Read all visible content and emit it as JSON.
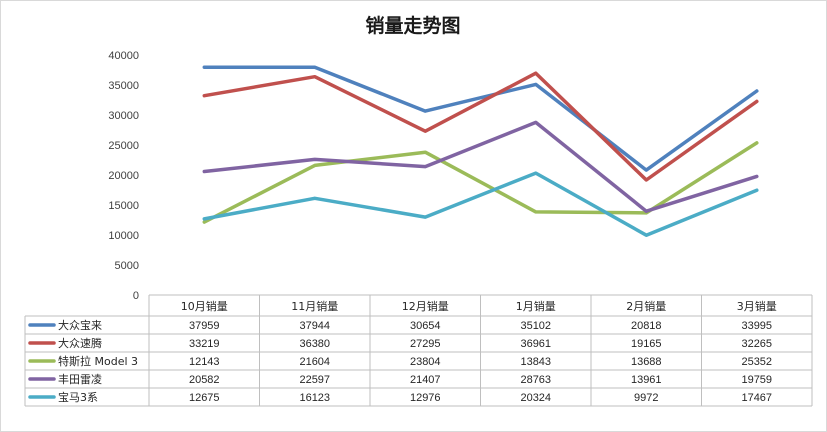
{
  "chart_data": {
    "type": "line",
    "title": "销量走势图",
    "categories": [
      "10月销量",
      "11月销量",
      "12月销量",
      "1月销量",
      "2月销量",
      "3月销量"
    ],
    "ylim": [
      0,
      40000
    ],
    "yticks": [
      0,
      5000,
      10000,
      15000,
      20000,
      25000,
      30000,
      35000,
      40000
    ],
    "grid": false,
    "legend": "data-table-left",
    "series": [
      {
        "name": "大众宝来",
        "color": "#4f81bd",
        "values": [
          37959,
          37944,
          30654,
          35102,
          20818,
          33995
        ]
      },
      {
        "name": "大众速腾",
        "color": "#c0504d",
        "values": [
          33219,
          36380,
          27295,
          36961,
          19165,
          32265
        ]
      },
      {
        "name": "特斯拉 Model 3",
        "color": "#9bbb59",
        "values": [
          12143,
          21604,
          23804,
          13843,
          13688,
          25352
        ]
      },
      {
        "name": "丰田雷凌",
        "color": "#8064a2",
        "values": [
          20582,
          22597,
          21407,
          28763,
          13961,
          19759
        ]
      },
      {
        "name": "宝马3系",
        "color": "#4bacc6",
        "values": [
          12675,
          16123,
          12976,
          20324,
          9972,
          17467
        ]
      }
    ]
  }
}
